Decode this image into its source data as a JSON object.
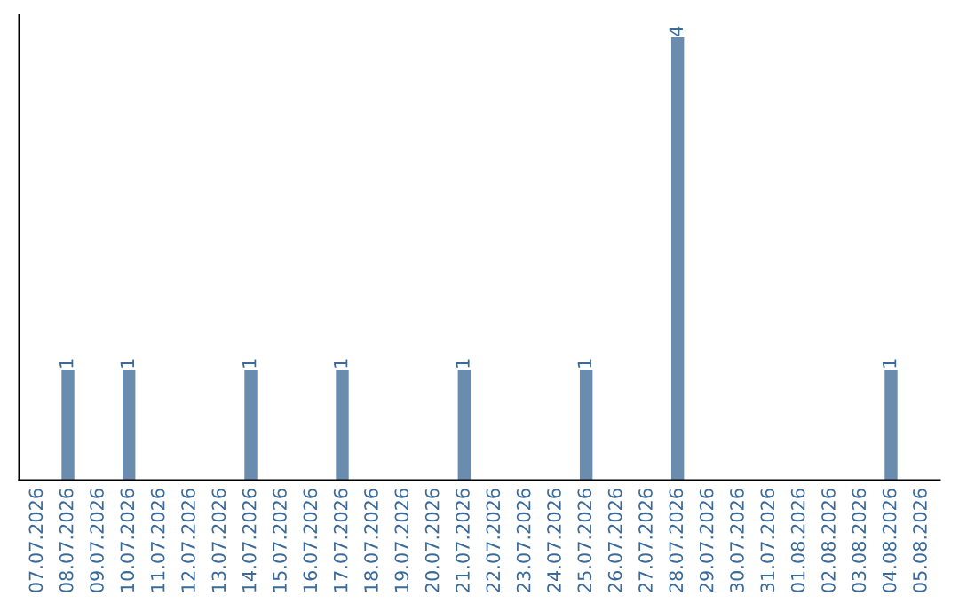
{
  "chart_data": {
    "type": "bar",
    "categories": [
      "07.07.2026",
      "08.07.2026",
      "09.07.2026",
      "10.07.2026",
      "11.07.2026",
      "12.07.2026",
      "13.07.2026",
      "14.07.2026",
      "15.07.2026",
      "16.07.2026",
      "17.07.2026",
      "18.07.2026",
      "19.07.2026",
      "20.07.2026",
      "21.07.2026",
      "22.07.2026",
      "23.07.2026",
      "24.07.2026",
      "25.07.2026",
      "26.07.2026",
      "27.07.2026",
      "28.07.2026",
      "29.07.2026",
      "30.07.2026",
      "31.07.2026",
      "01.08.2026",
      "02.08.2026",
      "03.08.2026",
      "04.08.2026",
      "05.08.2026"
    ],
    "values": [
      0,
      1,
      0,
      1,
      0,
      0,
      0,
      1,
      0,
      0,
      1,
      0,
      0,
      0,
      1,
      0,
      0,
      0,
      1,
      0,
      0,
      4,
      0,
      0,
      0,
      0,
      0,
      0,
      1,
      0
    ],
    "value_labels": [
      null,
      "1",
      null,
      "1",
      null,
      null,
      null,
      "1",
      null,
      null,
      "1",
      null,
      null,
      null,
      "1",
      null,
      null,
      null,
      "1",
      null,
      null,
      "4",
      null,
      null,
      null,
      null,
      null,
      null,
      "1",
      null
    ],
    "color": "#6a8cae",
    "ylim": [
      0,
      4.2
    ],
    "tick_labels": "x",
    "grid": false,
    "legend": false
  }
}
